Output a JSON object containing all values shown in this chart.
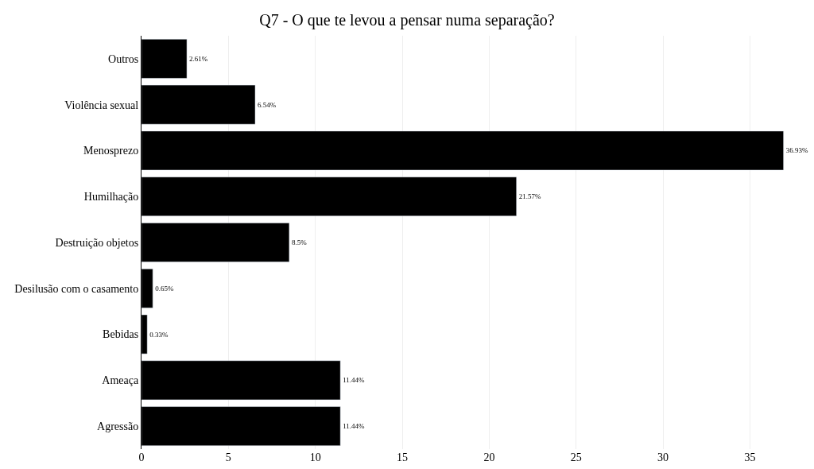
{
  "chart_data": {
    "type": "bar",
    "orientation": "horizontal",
    "title": "Q7 - O que te levou a pensar numa separação?",
    "categories": [
      "Outros",
      "Violência sexual",
      "Menosprezo",
      "Humilhação",
      "Destruição objetos",
      "Desilusão com o casamento",
      "Bebidas",
      "Ameaça",
      "Agressão"
    ],
    "values": [
      2.61,
      6.54,
      36.93,
      21.57,
      8.5,
      0.65,
      0.33,
      11.44,
      11.44
    ],
    "value_labels": [
      "2.61%",
      "6.54%",
      "36.93%",
      "21.57%",
      "8.5%",
      "0.65%",
      "0.33%",
      "11.44%",
      "11.44%"
    ],
    "color": "#000000",
    "xlim": [
      0,
      38.5
    ],
    "xticks": [
      0,
      5,
      10,
      15,
      20,
      25,
      30,
      35
    ],
    "grid": "x",
    "legend": false
  }
}
